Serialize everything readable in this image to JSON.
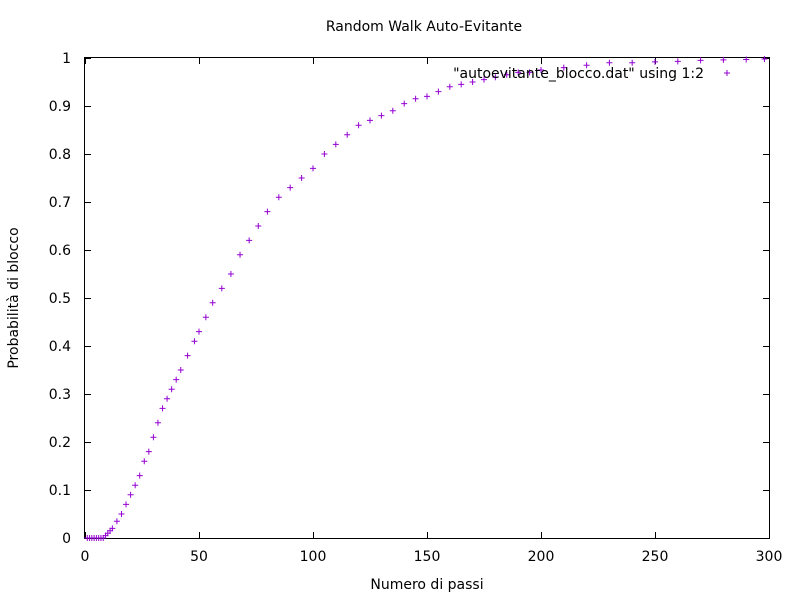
{
  "chart_data": {
    "type": "scatter",
    "title": "Random Walk Auto-Evitante",
    "xlabel": "Numero di passi",
    "ylabel": "Probabilità di blocco",
    "xlim": [
      0,
      300
    ],
    "ylim": [
      0,
      1
    ],
    "xticks": [
      "0",
      "50",
      "100",
      "150",
      "200",
      "250",
      "300"
    ],
    "yticks": [
      "0",
      "0.1",
      "0.2",
      "0.3",
      "0.4",
      "0.5",
      "0.6",
      "0.7",
      "0.8",
      "0.9",
      "1"
    ],
    "grid": false,
    "legend_position": "top-right",
    "series": [
      {
        "name": "\"autoevitante_blocco.dat\" using 1:2",
        "color": "#9400d3",
        "marker": "plus",
        "x": [
          1,
          2,
          3,
          4,
          5,
          6,
          7,
          8,
          9,
          10,
          11,
          12,
          14,
          16,
          18,
          20,
          22,
          24,
          26,
          28,
          30,
          32,
          34,
          36,
          38,
          40,
          42,
          45,
          48,
          50,
          53,
          56,
          60,
          64,
          68,
          72,
          76,
          80,
          85,
          90,
          95,
          100,
          105,
          110,
          115,
          120,
          125,
          130,
          135,
          140,
          145,
          150,
          155,
          160,
          165,
          170,
          175,
          180,
          185,
          190,
          195,
          200,
          210,
          220,
          230,
          240,
          250,
          260,
          270,
          280,
          290,
          298
        ],
        "y": [
          0.0,
          0.0,
          0.0,
          0.0,
          0.0,
          0.0,
          0.0,
          0.0,
          0.005,
          0.01,
          0.015,
          0.02,
          0.035,
          0.05,
          0.07,
          0.09,
          0.11,
          0.13,
          0.16,
          0.18,
          0.21,
          0.24,
          0.27,
          0.29,
          0.31,
          0.33,
          0.35,
          0.38,
          0.41,
          0.43,
          0.46,
          0.49,
          0.52,
          0.55,
          0.59,
          0.62,
          0.65,
          0.68,
          0.71,
          0.73,
          0.75,
          0.77,
          0.8,
          0.82,
          0.84,
          0.86,
          0.87,
          0.88,
          0.89,
          0.905,
          0.915,
          0.92,
          0.93,
          0.94,
          0.945,
          0.95,
          0.955,
          0.96,
          0.965,
          0.97,
          0.97,
          0.975,
          0.98,
          0.985,
          0.99,
          0.99,
          0.992,
          0.993,
          0.995,
          0.996,
          0.997,
          0.998
        ]
      }
    ]
  }
}
